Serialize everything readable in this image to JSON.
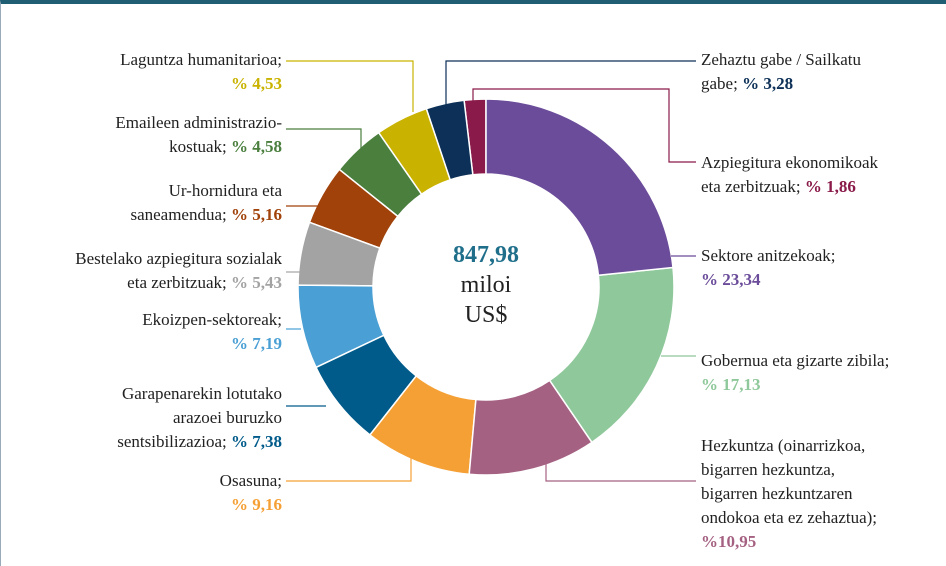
{
  "chart_data": {
    "type": "donut",
    "center_label": {
      "total": "847,98",
      "unit_1": "miloi",
      "unit_2": "US$"
    },
    "categories": [
      "Sektore anitzekoak;",
      "Gobernua eta gizarte zibila;",
      "Hezkuntza (oinarrizkoa,\nbigarren hezkuntza,\nbigarren hezkuntzaren\nondokoa eta ez zehaztua);",
      "Osasuna;",
      "Garapenarekin lotutako\narazoei buruzko\nsentsibilizazioa;",
      "Ekoizpen-sektoreak;",
      "Bestelako azpiegitura sozialak\neta zerbitzuak;",
      "Ur-hornidura eta\nsaneamendua;",
      "Emaileen administrazio-\nkostuak;",
      "Laguntza humanitarioa;",
      "Zehaztu gabe / Sailkatu\ngabe;",
      "Azpiegitura ekonomikoak\neta zerbitzuak;"
    ],
    "values": [
      23.34,
      17.13,
      10.95,
      9.16,
      7.38,
      7.19,
      5.43,
      5.16,
      4.58,
      4.53,
      3.28,
      1.86
    ],
    "value_labels": [
      "% 23,34",
      "% 17,13",
      "%10,95",
      "% 9,16",
      "% 7,38",
      "% 7,19",
      "% 5,43",
      "% 5,16",
      "% 4,58",
      "% 4,53",
      "% 3,28",
      "% 1,86"
    ],
    "colors": [
      "#6b4c9a",
      "#8fc89a",
      "#a56182",
      "#f5a035",
      "#005b8a",
      "#4a9fd4",
      "#a3a3a3",
      "#a0420a",
      "#4a7f3e",
      "#c9b300",
      "#0c3057",
      "#8a1a4a"
    ]
  }
}
